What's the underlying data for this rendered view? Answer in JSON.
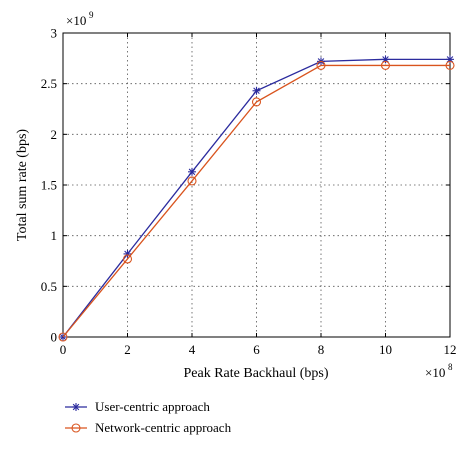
{
  "chart_data": {
    "type": "line",
    "title": "",
    "xlabel": "Peak Rate Backhaul (bps)",
    "ylabel": "Total sum rate (bps)",
    "x_multiplier": "×10",
    "x_exponent": "8",
    "y_multiplier": "×10",
    "y_exponent": "9",
    "xlim": [
      0,
      12
    ],
    "ylim": [
      0,
      3
    ],
    "xticks": [
      0,
      2,
      4,
      6,
      8,
      10,
      12
    ],
    "yticks": [
      0,
      0.5,
      1,
      1.5,
      2,
      2.5,
      3
    ],
    "xtick_labels": [
      "0",
      "2",
      "4",
      "6",
      "8",
      "10",
      "12"
    ],
    "ytick_labels": [
      "0",
      "0.5",
      "1",
      "1.5",
      "2",
      "2.5",
      "3"
    ],
    "grid": true,
    "legend_position": "below-left",
    "x": [
      0,
      2,
      4,
      6,
      8,
      10,
      12
    ],
    "series": [
      {
        "name": "User-centric approach",
        "values": [
          0,
          0.82,
          1.63,
          2.43,
          2.72,
          2.74,
          2.74
        ],
        "color": "#2b2b9e",
        "marker": "asterisk"
      },
      {
        "name": "Network-centric approach",
        "values": [
          0,
          0.77,
          1.54,
          2.32,
          2.68,
          2.68,
          2.68
        ],
        "color": "#d9541e",
        "marker": "circle"
      }
    ]
  }
}
